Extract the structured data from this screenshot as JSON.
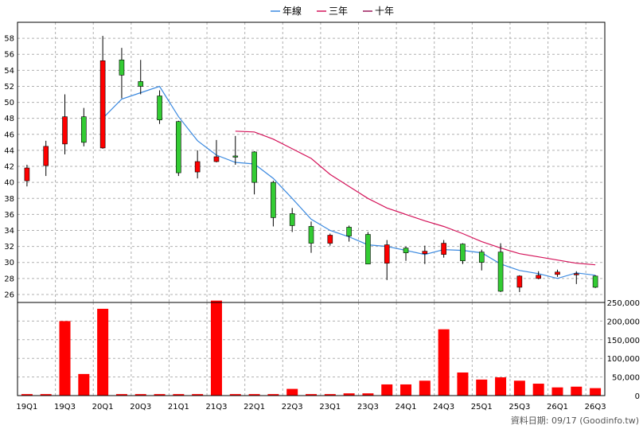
{
  "legend": [
    {
      "label": "年線",
      "color": "#3c8ae0"
    },
    {
      "label": "三年",
      "color": "#d4145a"
    },
    {
      "label": "十年",
      "color": "#9b1b5a"
    }
  ],
  "footer": {
    "date_text": "資料日期: 09/17 (Goodinfo.tw)"
  },
  "chart_data": [
    {
      "type": "candlestick",
      "ylim": [
        25,
        60
      ],
      "yticks": [
        26,
        28,
        30,
        32,
        34,
        36,
        38,
        40,
        42,
        44,
        46,
        48,
        50,
        52,
        54,
        56,
        58
      ],
      "x_labels": [
        "19Q1",
        "19Q3",
        "20Q1",
        "20Q3",
        "21Q1",
        "21Q3",
        "22Q1",
        "22Q3",
        "23Q1",
        "23Q3",
        "24Q1",
        "24Q3",
        "25Q1",
        "25Q3",
        "26Q1",
        "26Q3"
      ],
      "up_color": "#ff0000",
      "down_color": "#33cc33",
      "candles": [
        {
          "o": 40.2,
          "h": 42.2,
          "l": 39.5,
          "c": 41.8
        },
        {
          "o": 42.1,
          "h": 45.2,
          "l": 40.8,
          "c": 44.5
        },
        {
          "o": 44.8,
          "h": 51.0,
          "l": 43.5,
          "c": 48.2
        },
        {
          "o": 48.2,
          "h": 49.3,
          "l": 44.5,
          "c": 45.0
        },
        {
          "o": 44.3,
          "h": 58.3,
          "l": 44.2,
          "c": 55.2
        },
        {
          "o": 55.3,
          "h": 56.8,
          "l": 50.5,
          "c": 53.4
        },
        {
          "o": 52.6,
          "h": 55.3,
          "l": 51.0,
          "c": 52.0
        },
        {
          "o": 50.8,
          "h": 51.5,
          "l": 47.3,
          "c": 47.8
        },
        {
          "o": 47.6,
          "h": 47.7,
          "l": 40.8,
          "c": 41.2
        },
        {
          "o": 41.3,
          "h": 44.0,
          "l": 40.5,
          "c": 42.6
        },
        {
          "o": 42.6,
          "h": 45.3,
          "l": 42.5,
          "c": 43.2
        },
        {
          "o": 43.3,
          "h": 45.8,
          "l": 42.2,
          "c": 43.2
        },
        {
          "o": 43.8,
          "h": 43.9,
          "l": 38.5,
          "c": 40.0
        },
        {
          "o": 40.0,
          "h": 40.2,
          "l": 34.5,
          "c": 35.6
        },
        {
          "o": 36.1,
          "h": 36.8,
          "l": 33.8,
          "c": 34.6
        },
        {
          "o": 34.5,
          "h": 35.1,
          "l": 31.2,
          "c": 32.4
        },
        {
          "o": 32.4,
          "h": 33.6,
          "l": 32.1,
          "c": 33.4
        },
        {
          "o": 34.4,
          "h": 34.6,
          "l": 32.6,
          "c": 33.3
        },
        {
          "o": 33.5,
          "h": 33.8,
          "l": 29.8,
          "c": 29.8
        },
        {
          "o": 29.9,
          "h": 32.8,
          "l": 27.8,
          "c": 32.2
        },
        {
          "o": 31.8,
          "h": 32.0,
          "l": 30.2,
          "c": 31.2
        },
        {
          "o": 31.1,
          "h": 32.1,
          "l": 29.8,
          "c": 31.4
        },
        {
          "o": 31.0,
          "h": 32.8,
          "l": 30.6,
          "c": 32.4
        },
        {
          "o": 32.3,
          "h": 32.4,
          "l": 29.8,
          "c": 30.2
        },
        {
          "o": 31.3,
          "h": 31.6,
          "l": 29.0,
          "c": 30.0
        },
        {
          "o": 31.3,
          "h": 32.4,
          "l": 26.3,
          "c": 26.4
        },
        {
          "o": 26.9,
          "h": 28.4,
          "l": 26.3,
          "c": 28.3
        },
        {
          "o": 28.0,
          "h": 28.9,
          "l": 27.9,
          "c": 28.4
        },
        {
          "o": 28.5,
          "h": 29.1,
          "l": 28.2,
          "c": 28.8
        },
        {
          "o": 28.6,
          "h": 28.9,
          "l": 27.3,
          "c": 28.6
        },
        {
          "o": 28.3,
          "h": 28.4,
          "l": 26.8,
          "c": 26.9
        }
      ],
      "lines": [
        {
          "color": "#3c8ae0",
          "y": [
            null,
            null,
            null,
            null,
            48.0,
            50.4,
            51.2,
            52.0,
            48.2,
            45.2,
            43.4,
            42.5,
            42.3,
            40.5,
            38.0,
            35.4,
            34.0,
            33.2,
            32.2,
            32.0,
            31.5,
            31.0,
            31.6,
            31.5,
            31.2,
            29.8,
            29.0,
            28.6,
            28.0,
            28.7,
            28.4
          ]
        },
        {
          "color": "#d4145a",
          "y": [
            null,
            null,
            null,
            null,
            null,
            null,
            null,
            null,
            null,
            null,
            null,
            46.4,
            46.3,
            45.4,
            44.2,
            43.0,
            41.0,
            39.5,
            38.0,
            36.8,
            36.0,
            35.2,
            34.5,
            33.6,
            32.6,
            31.8,
            31.1,
            30.7,
            30.3,
            29.9,
            29.7
          ]
        }
      ]
    },
    {
      "type": "bar",
      "ylim": [
        0,
        250000
      ],
      "yticks": [
        0,
        50000,
        100000,
        150000,
        200000,
        250000
      ],
      "ytick_labels": [
        "0",
        "50,000",
        "100,000",
        "150,000",
        "200,000",
        "250,000"
      ],
      "bar_color": "#ff0000",
      "values": [
        4000,
        4000,
        200000,
        58000,
        233000,
        4000,
        4000,
        4000,
        4000,
        4000,
        255000,
        4000,
        4000,
        4000,
        18000,
        4000,
        4000,
        6000,
        6000,
        30000,
        30000,
        40000,
        178000,
        62000,
        43000,
        49000,
        40000,
        32000,
        22000,
        24000,
        20000
      ]
    }
  ]
}
